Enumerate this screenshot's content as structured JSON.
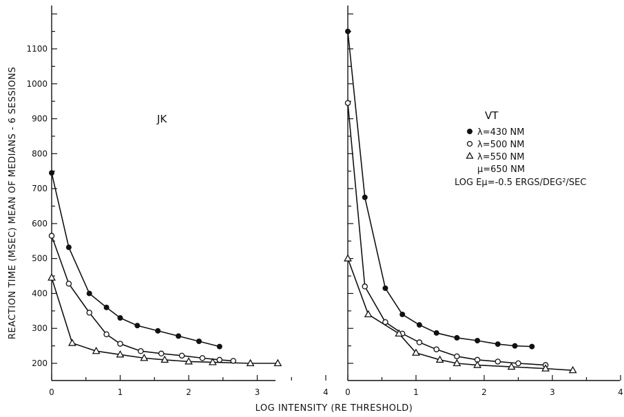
{
  "chart_data": {
    "type": "line",
    "ylabel": "REACTION TIME (MSEC) MEAN OF MEDIANS - 6 SESSIONS",
    "xlabel": "LOG INTENSITY (RE THRESHOLD)",
    "xlim": [
      0,
      4
    ],
    "ylim": [
      150,
      1250
    ],
    "x_ticks": [
      "0",
      "1",
      "2",
      "3",
      "4"
    ],
    "y_ticks": [
      "200",
      "300",
      "400",
      "500",
      "600",
      "700",
      "800",
      "900",
      "1000",
      "1100"
    ],
    "legend": {
      "lines": [
        "λ=430 NM",
        "λ=500 NM",
        "λ=550 NM",
        "μ=650 NM",
        "LOG Eμ=-0.5 ERGS/DEG²/SEC"
      ],
      "placement": "upper-right of right panel"
    },
    "panels": [
      {
        "label": "JK",
        "series": [
          {
            "marker": "filled-circle",
            "points": [
              [
                0,
                745
              ],
              [
                0.25,
                532
              ],
              [
                0.55,
                400
              ],
              [
                0.8,
                360
              ],
              [
                1.0,
                330
              ],
              [
                1.25,
                308
              ],
              [
                1.55,
                293
              ],
              [
                1.85,
                278
              ],
              [
                2.15,
                263
              ],
              [
                2.45,
                248
              ]
            ]
          },
          {
            "marker": "open-circle",
            "points": [
              [
                0,
                565
              ],
              [
                0.25,
                428
              ],
              [
                0.55,
                345
              ],
              [
                0.8,
                283
              ],
              [
                1.0,
                256
              ],
              [
                1.3,
                235
              ],
              [
                1.6,
                228
              ],
              [
                1.9,
                222
              ],
              [
                2.2,
                215
              ],
              [
                2.45,
                210
              ],
              [
                2.65,
                207
              ]
            ]
          },
          {
            "marker": "open-triangle",
            "points": [
              [
                0,
                445
              ],
              [
                0.3,
                258
              ],
              [
                0.65,
                235
              ],
              [
                1.0,
                225
              ],
              [
                1.35,
                215
              ],
              [
                1.65,
                210
              ],
              [
                2.0,
                205
              ],
              [
                2.35,
                203
              ],
              [
                2.9,
                200
              ],
              [
                3.3,
                200
              ]
            ]
          }
        ]
      },
      {
        "label": "VT",
        "series": [
          {
            "marker": "filled-circle",
            "points": [
              [
                0,
                1150
              ],
              [
                0.25,
                675
              ],
              [
                0.55,
                415
              ],
              [
                0.8,
                340
              ],
              [
                1.05,
                310
              ],
              [
                1.3,
                287
              ],
              [
                1.6,
                273
              ],
              [
                1.9,
                265
              ],
              [
                2.2,
                255
              ],
              [
                2.45,
                250
              ],
              [
                2.7,
                248
              ]
            ]
          },
          {
            "marker": "open-circle",
            "points": [
              [
                0,
                945
              ],
              [
                0.25,
                420
              ],
              [
                0.55,
                318
              ],
              [
                0.8,
                285
              ],
              [
                1.05,
                260
              ],
              [
                1.3,
                240
              ],
              [
                1.6,
                220
              ],
              [
                1.9,
                210
              ],
              [
                2.2,
                205
              ],
              [
                2.5,
                200
              ],
              [
                2.9,
                195
              ]
            ]
          },
          {
            "marker": "open-triangle",
            "points": [
              [
                0,
                500
              ],
              [
                0.3,
                340
              ],
              [
                0.75,
                285
              ],
              [
                1.0,
                230
              ],
              [
                1.35,
                210
              ],
              [
                1.6,
                200
              ],
              [
                1.9,
                195
              ],
              [
                2.4,
                190
              ],
              [
                2.9,
                185
              ],
              [
                3.3,
                180
              ]
            ]
          }
        ]
      }
    ]
  }
}
